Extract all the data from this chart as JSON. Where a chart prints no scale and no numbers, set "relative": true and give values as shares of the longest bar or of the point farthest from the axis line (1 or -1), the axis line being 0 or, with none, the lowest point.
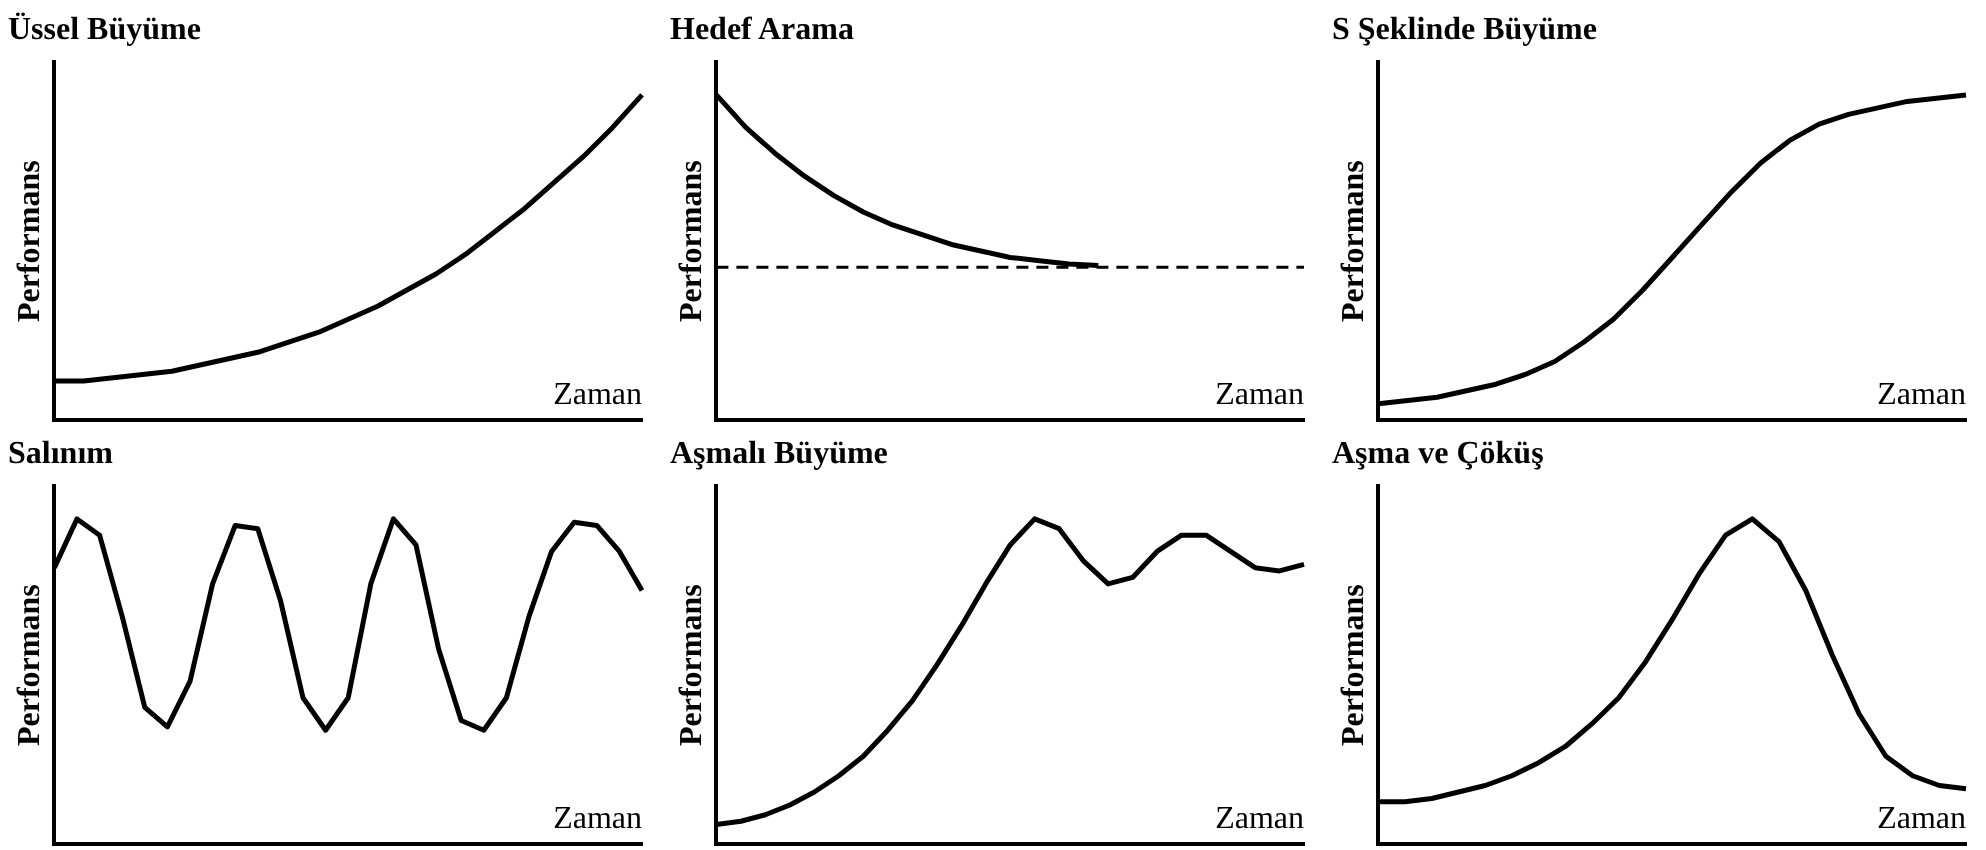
{
  "chart_data": [
    {
      "type": "line",
      "title": "Üssel Büyüme",
      "xlabel": "Zaman",
      "ylabel": "Performans",
      "relative": true,
      "legend": false,
      "grid": false,
      "marker": "none",
      "tick_labels": false,
      "categories": [
        null,
        null,
        null,
        null,
        null,
        null,
        null,
        null,
        null,
        null,
        null,
        null,
        null,
        null,
        null,
        null,
        null,
        null,
        null,
        null,
        null
      ],
      "series": [
        {
          "color": "#000000",
          "values": [
            0.12,
            0.12,
            0.13,
            0.14,
            0.15,
            0.17,
            0.19,
            0.21,
            0.24,
            0.27,
            0.31,
            0.35,
            0.4,
            0.45,
            0.51,
            0.58,
            0.65,
            0.73,
            0.81,
            0.9,
            1.0
          ]
        }
      ]
    },
    {
      "type": "line",
      "title": "Hedef Arama",
      "xlabel": "Zaman",
      "ylabel": "Performans",
      "relative": true,
      "legend": false,
      "grid": false,
      "marker": "none",
      "tick_labels": false,
      "categories": [
        null,
        null,
        null,
        null,
        null,
        null,
        null,
        null,
        null,
        null,
        null,
        null,
        null,
        null,
        null,
        null,
        null,
        null,
        null,
        null,
        null
      ],
      "series": [
        {
          "color": "#000000",
          "values": [
            1.0,
            0.9,
            0.82,
            0.75,
            0.69,
            0.64,
            0.6,
            0.57,
            0.54,
            0.52,
            0.5,
            0.49,
            0.48,
            0.475,
            null,
            null,
            null,
            null,
            null,
            null,
            null
          ]
        }
      ],
      "ref_lines": [
        {
          "axis": "y",
          "value": 0.47,
          "color": "#000000",
          "line_style": "dashed"
        }
      ]
    },
    {
      "type": "line",
      "title": "S Şeklinde Büyüme",
      "xlabel": "Zaman",
      "ylabel": "Performans",
      "relative": true,
      "legend": false,
      "grid": false,
      "marker": "none",
      "tick_labels": false,
      "categories": [
        null,
        null,
        null,
        null,
        null,
        null,
        null,
        null,
        null,
        null,
        null,
        null,
        null,
        null,
        null,
        null,
        null,
        null,
        null,
        null,
        null
      ],
      "series": [
        {
          "color": "#000000",
          "values": [
            0.05,
            0.06,
            0.07,
            0.09,
            0.11,
            0.14,
            0.18,
            0.24,
            0.31,
            0.4,
            0.5,
            0.6,
            0.7,
            0.79,
            0.86,
            0.91,
            0.94,
            0.96,
            0.98,
            0.99,
            1.0
          ]
        }
      ]
    },
    {
      "type": "line",
      "title": "Salınım",
      "xlabel": "Zaman",
      "ylabel": "Performans",
      "relative": true,
      "legend": false,
      "grid": false,
      "marker": "none",
      "tick_labels": false,
      "categories": [
        null,
        null,
        null,
        null,
        null,
        null,
        null,
        null,
        null,
        null,
        null,
        null,
        null,
        null,
        null,
        null,
        null,
        null,
        null,
        null,
        null,
        null,
        null,
        null,
        null,
        null,
        null
      ],
      "series": [
        {
          "color": "#000000",
          "values": [
            0.85,
            1.0,
            0.95,
            0.7,
            0.42,
            0.36,
            0.5,
            0.8,
            0.98,
            0.97,
            0.75,
            0.45,
            0.35,
            0.45,
            0.8,
            1.0,
            0.92,
            0.6,
            0.38,
            0.35,
            0.45,
            0.7,
            0.9,
            0.99,
            0.98,
            0.9,
            0.78
          ]
        }
      ]
    },
    {
      "type": "line",
      "title": "Aşmalı Büyüme",
      "xlabel": "Zaman",
      "ylabel": "Performans",
      "relative": true,
      "legend": false,
      "grid": false,
      "marker": "none",
      "tick_labels": false,
      "categories": [
        null,
        null,
        null,
        null,
        null,
        null,
        null,
        null,
        null,
        null,
        null,
        null,
        null,
        null,
        null,
        null,
        null,
        null,
        null,
        null,
        null,
        null,
        null,
        null,
        null
      ],
      "series": [
        {
          "color": "#000000",
          "values": [
            0.06,
            0.07,
            0.09,
            0.12,
            0.16,
            0.21,
            0.27,
            0.35,
            0.44,
            0.55,
            0.67,
            0.8,
            0.92,
            1.0,
            0.97,
            0.87,
            0.8,
            0.82,
            0.9,
            0.95,
            0.95,
            0.9,
            0.85,
            0.84,
            0.86
          ]
        }
      ]
    },
    {
      "type": "line",
      "title": "Aşma ve Çöküş",
      "xlabel": "Zaman",
      "ylabel": "Performans",
      "relative": true,
      "legend": false,
      "grid": false,
      "marker": "none",
      "tick_labels": false,
      "categories": [
        null,
        null,
        null,
        null,
        null,
        null,
        null,
        null,
        null,
        null,
        null,
        null,
        null,
        null,
        null,
        null,
        null,
        null,
        null,
        null,
        null,
        null,
        null
      ],
      "series": [
        {
          "color": "#000000",
          "values": [
            0.13,
            0.13,
            0.14,
            0.16,
            0.18,
            0.21,
            0.25,
            0.3,
            0.37,
            0.45,
            0.56,
            0.69,
            0.83,
            0.95,
            1.0,
            0.93,
            0.78,
            0.58,
            0.4,
            0.27,
            0.21,
            0.18,
            0.17
          ]
        }
      ]
    }
  ]
}
